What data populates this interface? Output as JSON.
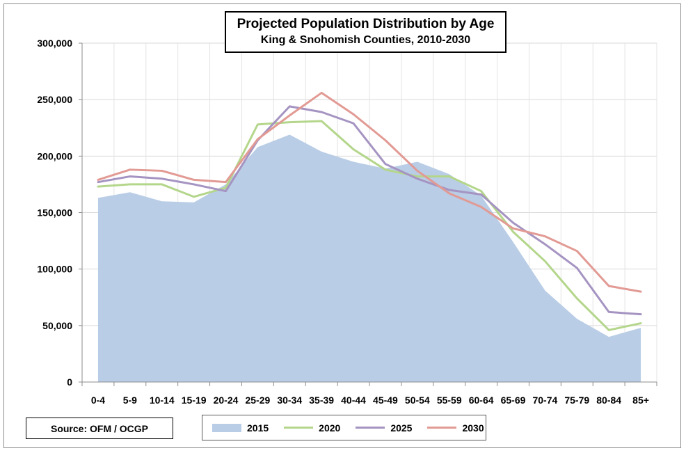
{
  "chart_data": {
    "type": "line",
    "title": "Projected Population Distribution by Age",
    "subtitle": "King & Snohomish Counties, 2010-2030",
    "xlabel": "",
    "ylabel": "",
    "ylim": [
      0,
      300000
    ],
    "yticks": [
      0,
      50000,
      100000,
      150000,
      200000,
      250000,
      300000
    ],
    "ytick_labels": [
      "0",
      "50,000",
      "100,000",
      "150,000",
      "200,000",
      "250,000",
      "300,000"
    ],
    "grid": true,
    "categories": [
      "0-4",
      "5-9",
      "10-14",
      "15-19",
      "20-24",
      "25-29",
      "30-34",
      "35-39",
      "40-44",
      "45-49",
      "50-54",
      "55-59",
      "60-64",
      "65-69",
      "70-74",
      "75-79",
      "80-84",
      "85+"
    ],
    "series": [
      {
        "name": "2015",
        "kind": "area",
        "color": "#b9cde6",
        "values": [
          163000,
          168000,
          160000,
          159000,
          175000,
          208000,
          219000,
          204000,
          195000,
          189000,
          195000,
          184000,
          165000,
          124000,
          81000,
          56000,
          40000,
          48000
        ]
      },
      {
        "name": "2020",
        "kind": "line",
        "color": "#b4d68b",
        "values": [
          173000,
          175000,
          175000,
          164000,
          172000,
          228000,
          230000,
          231000,
          206000,
          188000,
          182000,
          182000,
          169000,
          133000,
          107000,
          74000,
          46000,
          52000
        ]
      },
      {
        "name": "2025",
        "kind": "line",
        "color": "#a594c2",
        "values": [
          177000,
          182000,
          180000,
          175000,
          169000,
          214000,
          244000,
          239000,
          229000,
          193000,
          180000,
          170000,
          166000,
          141000,
          122000,
          101000,
          62000,
          60000
        ]
      },
      {
        "name": "2030",
        "kind": "line",
        "color": "#e29a94",
        "values": [
          179000,
          188000,
          187000,
          179000,
          177000,
          215000,
          236000,
          256000,
          237000,
          214000,
          187000,
          167000,
          155000,
          136000,
          129000,
          116000,
          85000,
          80000
        ]
      }
    ],
    "legend_position": "bottom"
  },
  "source": {
    "text": "Source:  OFM / OCGP"
  }
}
